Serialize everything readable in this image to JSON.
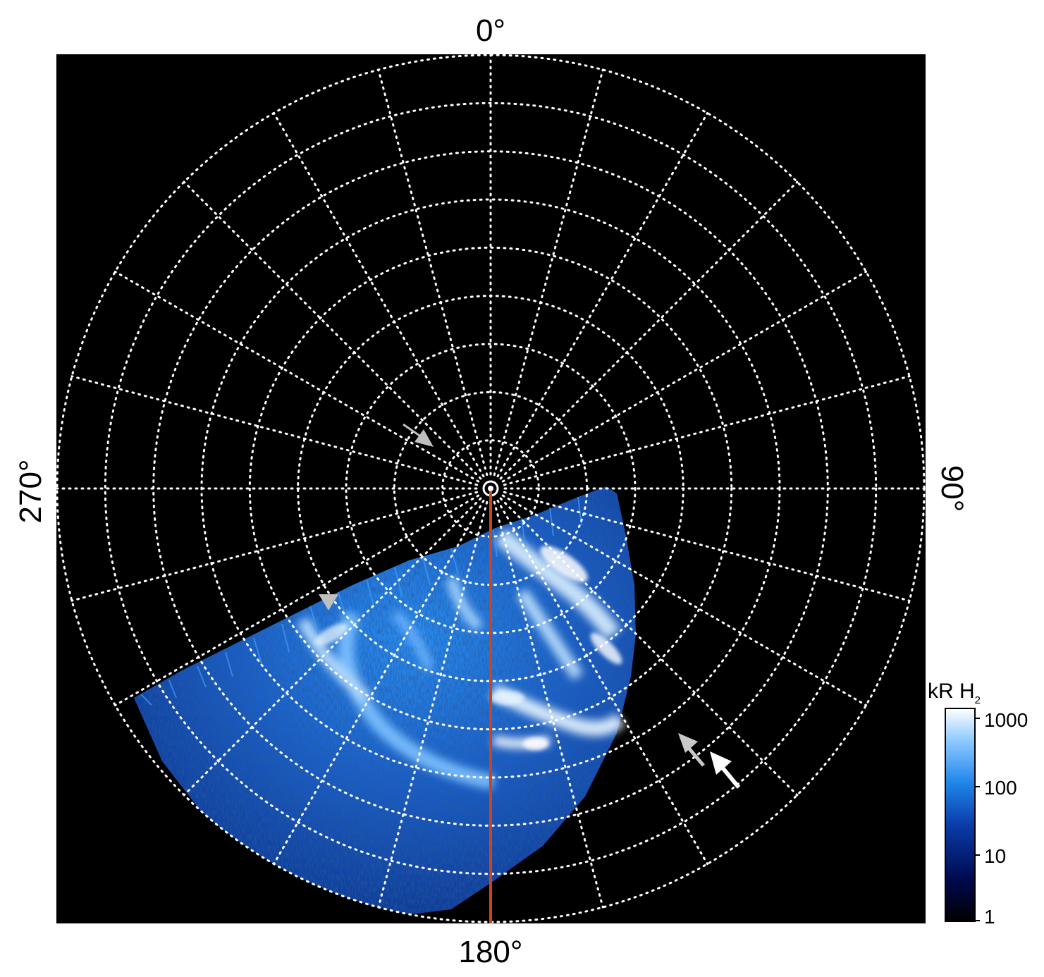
{
  "labels": {
    "top": "0°",
    "right": "90°",
    "bottom": "180°",
    "left": "270°"
  },
  "colorbar": {
    "title_main": "kR H",
    "title_sub": "2",
    "ticks": [
      "1000",
      "100",
      "10",
      "1"
    ],
    "scale": "log"
  },
  "colors": {
    "background": "#000000",
    "grid": "#ffffff",
    "meridian": "#d0421a",
    "aurora_dark": "#0a2f8a",
    "aurora_mid": "#1f7fe0",
    "aurora_bright": "#e6f4ff",
    "arrow_gray": "#bfbfbf",
    "arrow_white": "#ffffff"
  },
  "grid": {
    "rings": 9,
    "spokes": 24
  }
}
